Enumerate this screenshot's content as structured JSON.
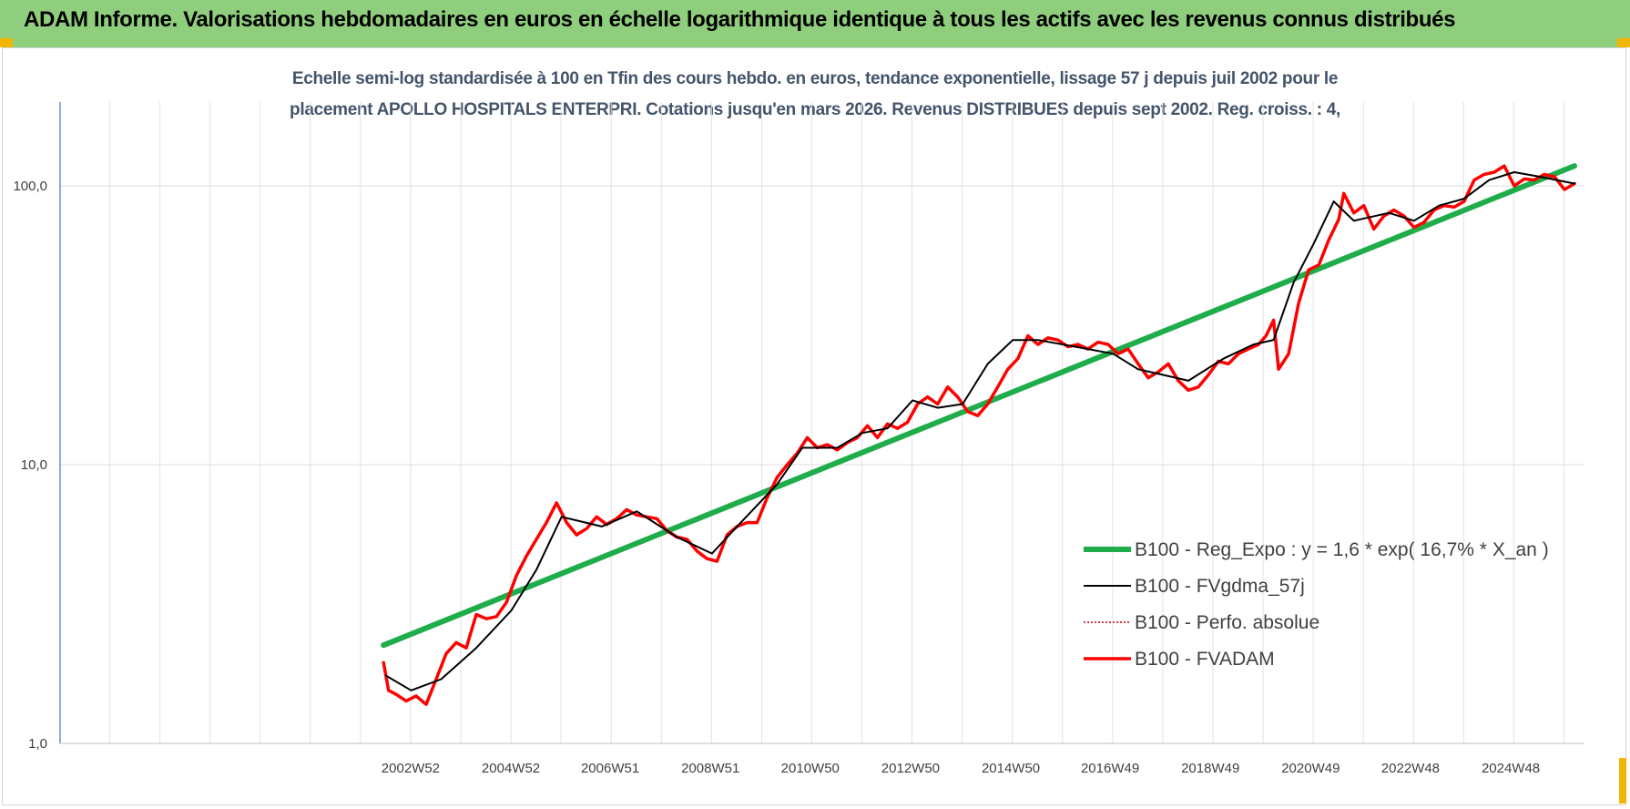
{
  "banner": {
    "title": "ADAM Informe. Valorisations hebdomadaires en euros en échelle logarithmique identique à tous les actifs avec les revenus connus distribués"
  },
  "chart_data": {
    "type": "line",
    "title_line1": "Echelle semi-log standardisée à 100 en Tfin des cours hebdo. en euros, tendance exponentielle, lissage 57 j depuis juil 2002 pour le",
    "title_line2": "placement APOLLO HOSPITALS  ENTERPRI. Cotations jusqu'en mars 2026. Revenus DISTRIBUES depuis sept 2002. Reg. croiss. : 4,",
    "y_scale": "log",
    "ylim": [
      1,
      200
    ],
    "y_ticks": [
      "1,0",
      "10,0",
      "100,0"
    ],
    "y_tick_values": [
      1,
      10,
      100
    ],
    "x_ticks": [
      "2002W52",
      "2004W52",
      "2006W51",
      "2008W51",
      "2010W50",
      "2012W50",
      "2014W50",
      "2016W49",
      "2018W49",
      "2020W49",
      "2022W48",
      "2024W48"
    ],
    "x_tick_years": [
      2002.99,
      2004.99,
      2006.97,
      2008.97,
      2010.96,
      2012.96,
      2014.96,
      2016.94,
      2018.94,
      2020.94,
      2022.93,
      2024.93
    ],
    "xlim": [
      1996.0,
      2026.4
    ],
    "grid": true,
    "legend_position": "bottom-right",
    "colors": {
      "regression": "#1fad4b",
      "smoothed": "#000000",
      "absolute": "#c00000",
      "fvadam": "#ff0000"
    },
    "series": [
      {
        "name": "B100 - Reg_Expo : y = 1,6 * exp( 16,7% *  X_an )",
        "kind": "regression",
        "x": [
          2002.45,
          2026.2
        ],
        "y": [
          2.25,
          118
        ]
      },
      {
        "name": "B100 - FVgdma_57j",
        "kind": "smoothed",
        "x": [
          2002.5,
          2003.0,
          2003.6,
          2004.3,
          2005.0,
          2005.5,
          2006.0,
          2006.8,
          2007.5,
          2008.3,
          2009.0,
          2009.5,
          2010.3,
          2010.8,
          2011.5,
          2012.0,
          2012.5,
          2013.0,
          2013.5,
          2014.0,
          2014.5,
          2015.0,
          2015.5,
          2016.5,
          2017.0,
          2017.5,
          2018.0,
          2018.5,
          2019.2,
          2019.8,
          2020.2,
          2020.6,
          2021.0,
          2021.4,
          2021.8,
          2022.5,
          2023.0,
          2023.5,
          2024.0,
          2024.5,
          2025.0,
          2025.5,
          2026.2
        ],
        "y": [
          1.75,
          1.55,
          1.7,
          2.2,
          3.0,
          4.2,
          6.5,
          6.0,
          6.8,
          5.5,
          4.8,
          6.0,
          8.5,
          11.5,
          11.5,
          13.0,
          13.5,
          17.0,
          16.0,
          16.5,
          23.0,
          28.0,
          28.0,
          26.0,
          25.0,
          22.0,
          21.0,
          20.0,
          24.0,
          27.0,
          28.0,
          45.0,
          62.0,
          88.0,
          75.0,
          80.0,
          75.0,
          85.0,
          90.0,
          105.0,
          112.0,
          108.0,
          102.0
        ]
      },
      {
        "name": "B100 - Perfo. absolue",
        "kind": "absolute"
      },
      {
        "name": "B100 - FVADAM",
        "kind": "fvadam",
        "x": [
          2002.45,
          2002.55,
          2002.7,
          2002.9,
          2003.1,
          2003.3,
          2003.5,
          2003.7,
          2003.9,
          2004.1,
          2004.3,
          2004.5,
          2004.7,
          2004.9,
          2005.1,
          2005.3,
          2005.5,
          2005.7,
          2005.9,
          2006.1,
          2006.3,
          2006.5,
          2006.7,
          2006.9,
          2007.1,
          2007.3,
          2007.5,
          2007.7,
          2007.9,
          2008.1,
          2008.3,
          2008.5,
          2008.7,
          2008.9,
          2009.1,
          2009.3,
          2009.5,
          2009.7,
          2009.9,
          2010.1,
          2010.3,
          2010.5,
          2010.7,
          2010.9,
          2011.1,
          2011.3,
          2011.5,
          2011.7,
          2011.9,
          2012.1,
          2012.3,
          2012.5,
          2012.7,
          2012.9,
          2013.1,
          2013.3,
          2013.5,
          2013.7,
          2013.9,
          2014.1,
          2014.3,
          2014.5,
          2014.7,
          2014.9,
          2015.1,
          2015.3,
          2015.5,
          2015.7,
          2015.9,
          2016.1,
          2016.3,
          2016.5,
          2016.7,
          2016.9,
          2017.1,
          2017.3,
          2017.5,
          2017.7,
          2017.9,
          2018.1,
          2018.3,
          2018.5,
          2018.7,
          2018.9,
          2019.1,
          2019.3,
          2019.5,
          2019.7,
          2019.9,
          2020.05,
          2020.2,
          2020.3,
          2020.5,
          2020.7,
          2020.9,
          2021.1,
          2021.3,
          2021.5,
          2021.6,
          2021.8,
          2022.0,
          2022.2,
          2022.4,
          2022.6,
          2022.8,
          2023.0,
          2023.2,
          2023.4,
          2023.6,
          2023.8,
          2024.0,
          2024.2,
          2024.4,
          2024.6,
          2024.8,
          2025.0,
          2025.2,
          2025.4,
          2025.6,
          2025.8,
          2026.0,
          2026.2
        ],
        "y": [
          1.95,
          1.55,
          1.5,
          1.42,
          1.48,
          1.38,
          1.7,
          2.1,
          2.3,
          2.2,
          2.9,
          2.8,
          2.85,
          3.2,
          4.0,
          4.7,
          5.4,
          6.2,
          7.3,
          6.2,
          5.6,
          5.9,
          6.5,
          6.1,
          6.4,
          6.9,
          6.6,
          6.5,
          6.4,
          5.8,
          5.5,
          5.4,
          4.9,
          4.6,
          4.5,
          5.6,
          6.0,
          6.2,
          6.2,
          7.6,
          9.0,
          10.0,
          11.0,
          12.5,
          11.5,
          11.8,
          11.3,
          12.0,
          12.5,
          13.8,
          12.5,
          14.0,
          13.5,
          14.2,
          16.5,
          17.5,
          16.5,
          19.0,
          17.5,
          15.5,
          15.0,
          16.5,
          19.0,
          22.0,
          24.0,
          29.0,
          27.0,
          28.5,
          28.0,
          26.5,
          27.0,
          26.0,
          27.5,
          27.0,
          25.0,
          26.0,
          23.0,
          20.5,
          21.5,
          23.0,
          20.0,
          18.5,
          19.0,
          21.0,
          23.5,
          23.0,
          25.0,
          26.0,
          27.0,
          29.0,
          33.0,
          22.0,
          25.0,
          38.0,
          50.0,
          52.0,
          64.0,
          76.0,
          94.0,
          80.0,
          85.0,
          70.0,
          78.0,
          82.0,
          78.0,
          71.0,
          74.0,
          82.0,
          85.0,
          84.0,
          88.0,
          105.0,
          110.0,
          112.0,
          118.0,
          100.0,
          106.0,
          105.0,
          110.0,
          108.0,
          97.0,
          102.0
        ]
      }
    ]
  }
}
